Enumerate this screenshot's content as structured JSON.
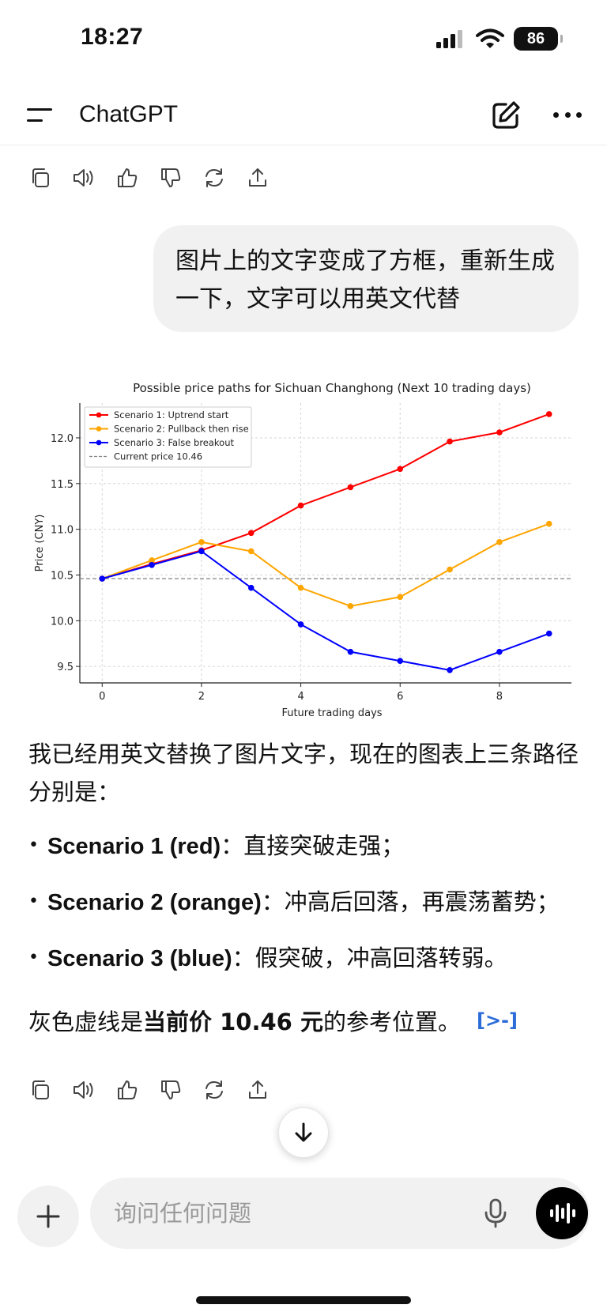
{
  "status": {
    "time": "18:27",
    "battery": "86"
  },
  "nav": {
    "title": "ChatGPT"
  },
  "user_message": "图片上的文字变成了方框，重新生成一下，文字可以用英文代替",
  "chart_data": {
    "type": "line",
    "title": "Possible price paths for Sichuan Changhong (Next 10 trading days)",
    "xlabel": "Future trading days",
    "ylabel": "Price (CNY)",
    "xlim": [
      -0.45,
      9.45
    ],
    "ylim": [
      9.32,
      12.38
    ],
    "x_ticks": [
      0,
      2,
      4,
      6,
      8
    ],
    "y_ticks": [
      9.5,
      10.0,
      10.5,
      11.0,
      11.5,
      12.0
    ],
    "y_tick_labels": [
      "9.5",
      "10.0",
      "10.5",
      "11.0",
      "11.5",
      "12.0"
    ],
    "grid": true,
    "legend_position": "top-left",
    "x": [
      0,
      1,
      2,
      3,
      4,
      5,
      6,
      7,
      8,
      9
    ],
    "series": [
      {
        "name": "Scenario 1: Uptrend start",
        "color": "#ff0000",
        "values": [
          10.46,
          10.62,
          10.77,
          10.96,
          11.26,
          11.46,
          11.66,
          11.96,
          12.06,
          12.26
        ]
      },
      {
        "name": "Scenario 2: Pullback then rise",
        "color": "#ffa500",
        "values": [
          10.46,
          10.66,
          10.86,
          10.76,
          10.36,
          10.16,
          10.26,
          10.56,
          10.86,
          11.06
        ]
      },
      {
        "name": "Scenario 3: False breakout",
        "color": "#0000ff",
        "values": [
          10.46,
          10.61,
          10.76,
          10.36,
          9.96,
          9.66,
          9.56,
          9.46,
          9.66,
          9.86
        ]
      }
    ],
    "reference_line": {
      "name": "Current price 10.46",
      "value": 10.46,
      "color": "#808080"
    }
  },
  "answer": {
    "intro": "我已经用英文替换了图片文字，现在的图表上三条路径分别是：",
    "bullets": [
      {
        "bold": "Scenario 1 (red)",
        "text": "：直接突破走强；"
      },
      {
        "bold": "Scenario 2 (orange)",
        "text": "：冲高后回落，再震荡蓄势；"
      },
      {
        "bold": "Scenario 3 (blue)",
        "text": "：假突破，冲高回落转弱。"
      }
    ],
    "note_prefix": "灰色虚线是",
    "note_bold": "当前价 10.46 元",
    "note_suffix": "的参考位置。",
    "source_chip": "[>-]"
  },
  "composer": {
    "placeholder": "询问任何问题"
  }
}
